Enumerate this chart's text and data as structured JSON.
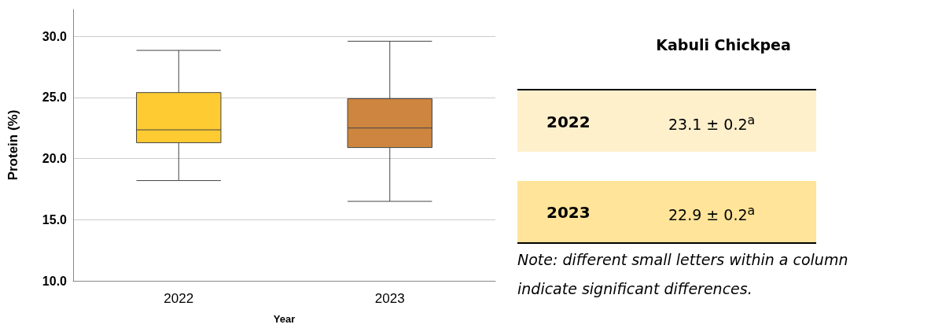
{
  "chart_data": [
    {
      "type": "box",
      "xlabel": "Year",
      "ylabel": "Protein (%)",
      "categories": [
        "2022",
        "2023"
      ],
      "boxes": [
        {
          "low": 18.2,
          "q1": 21.3,
          "median": 22.35,
          "q3": 25.4,
          "high": 28.85
        },
        {
          "low": 16.5,
          "q1": 20.9,
          "median": 22.5,
          "q3": 24.9,
          "high": 29.6
        }
      ],
      "colors": [
        "#fecb33",
        "#cd853f"
      ],
      "ylim": [
        10,
        32.2
      ],
      "yticks": [
        {
          "value": 10,
          "label": "10.0"
        },
        {
          "value": 15,
          "label": "15.0"
        },
        {
          "value": 20,
          "label": "20.0"
        },
        {
          "value": 25,
          "label": "25.0"
        },
        {
          "value": 30,
          "label": "30.0"
        }
      ],
      "grid": "y"
    },
    {
      "type": "other",
      "title": "Kabuli Chickpea",
      "annotations": [
        "2022",
        "23.1 ± 0.2$^{a}$",
        "2023",
        "22.9 ± 0.2$^{a}$",
        "Note: different small letters within a column indicate significant differences."
      ]
    }
  ]
}
